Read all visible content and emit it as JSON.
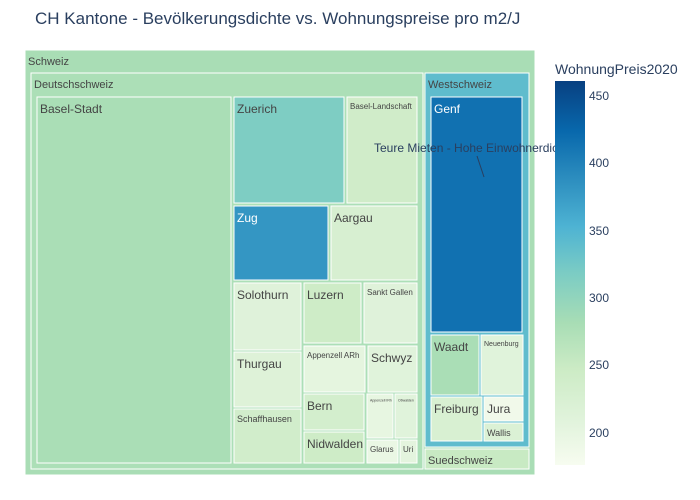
{
  "chart_data": {
    "type": "treemap",
    "title": "CH Kantone - Bevölkerungsdichte vs. Wohnungspreise pro m2/J",
    "color_title": "WohnungPreis2020",
    "color_range": [
      180,
      465
    ],
    "color_ticks": [
      "450",
      "400",
      "350",
      "300",
      "250",
      "200"
    ],
    "colorscale": [
      "#f7fcf0",
      "#e0f3db",
      "#ccebc5",
      "#a8ddb5",
      "#7bccc4",
      "#4eb3d3",
      "#2b8cbe",
      "#0868ac",
      "#084081"
    ],
    "annotation": "Teure Mieten - Hohe Einwohnerdichte",
    "tiles": [
      {
        "label": "Schweiz",
        "price": 286
      },
      {
        "label": "Deutschschweiz",
        "price": 283
      },
      {
        "label": "Westschweiz",
        "price": 345
      },
      {
        "label": "Suedschweiz",
        "price": 255
      },
      {
        "label": "Basel-Stadt",
        "price": 285
      },
      {
        "label": "Zuerich",
        "price": 320
      },
      {
        "label": "Basel-Landschaft",
        "price": 245
      },
      {
        "label": "Zug",
        "price": 385
      },
      {
        "label": "Aargau",
        "price": 232
      },
      {
        "label": "Solothurn",
        "price": 218
      },
      {
        "label": "Luzern",
        "price": 248
      },
      {
        "label": "Sankt Gallen",
        "price": 218
      },
      {
        "label": "Thurgau",
        "price": 220
      },
      {
        "label": "Appenzell ARh",
        "price": 208
      },
      {
        "label": "Schwyz",
        "price": 215
      },
      {
        "label": "Schaffhausen",
        "price": 242
      },
      {
        "label": "Bern",
        "price": 238
      },
      {
        "label": "Appenzell IRh",
        "price": 205
      },
      {
        "label": "Obwalden",
        "price": 215
      },
      {
        "label": "Nidwalden",
        "price": 248
      },
      {
        "label": "Glarus",
        "price": 200
      },
      {
        "label": "Uri",
        "price": 210
      },
      {
        "label": "Genf",
        "price": 420
      },
      {
        "label": "Waadt",
        "price": 285
      },
      {
        "label": "Neuenburg",
        "price": 215
      },
      {
        "label": "Freiburg",
        "price": 230
      },
      {
        "label": "Jura",
        "price": 190
      },
      {
        "label": "Wallis",
        "price": 225
      }
    ]
  }
}
